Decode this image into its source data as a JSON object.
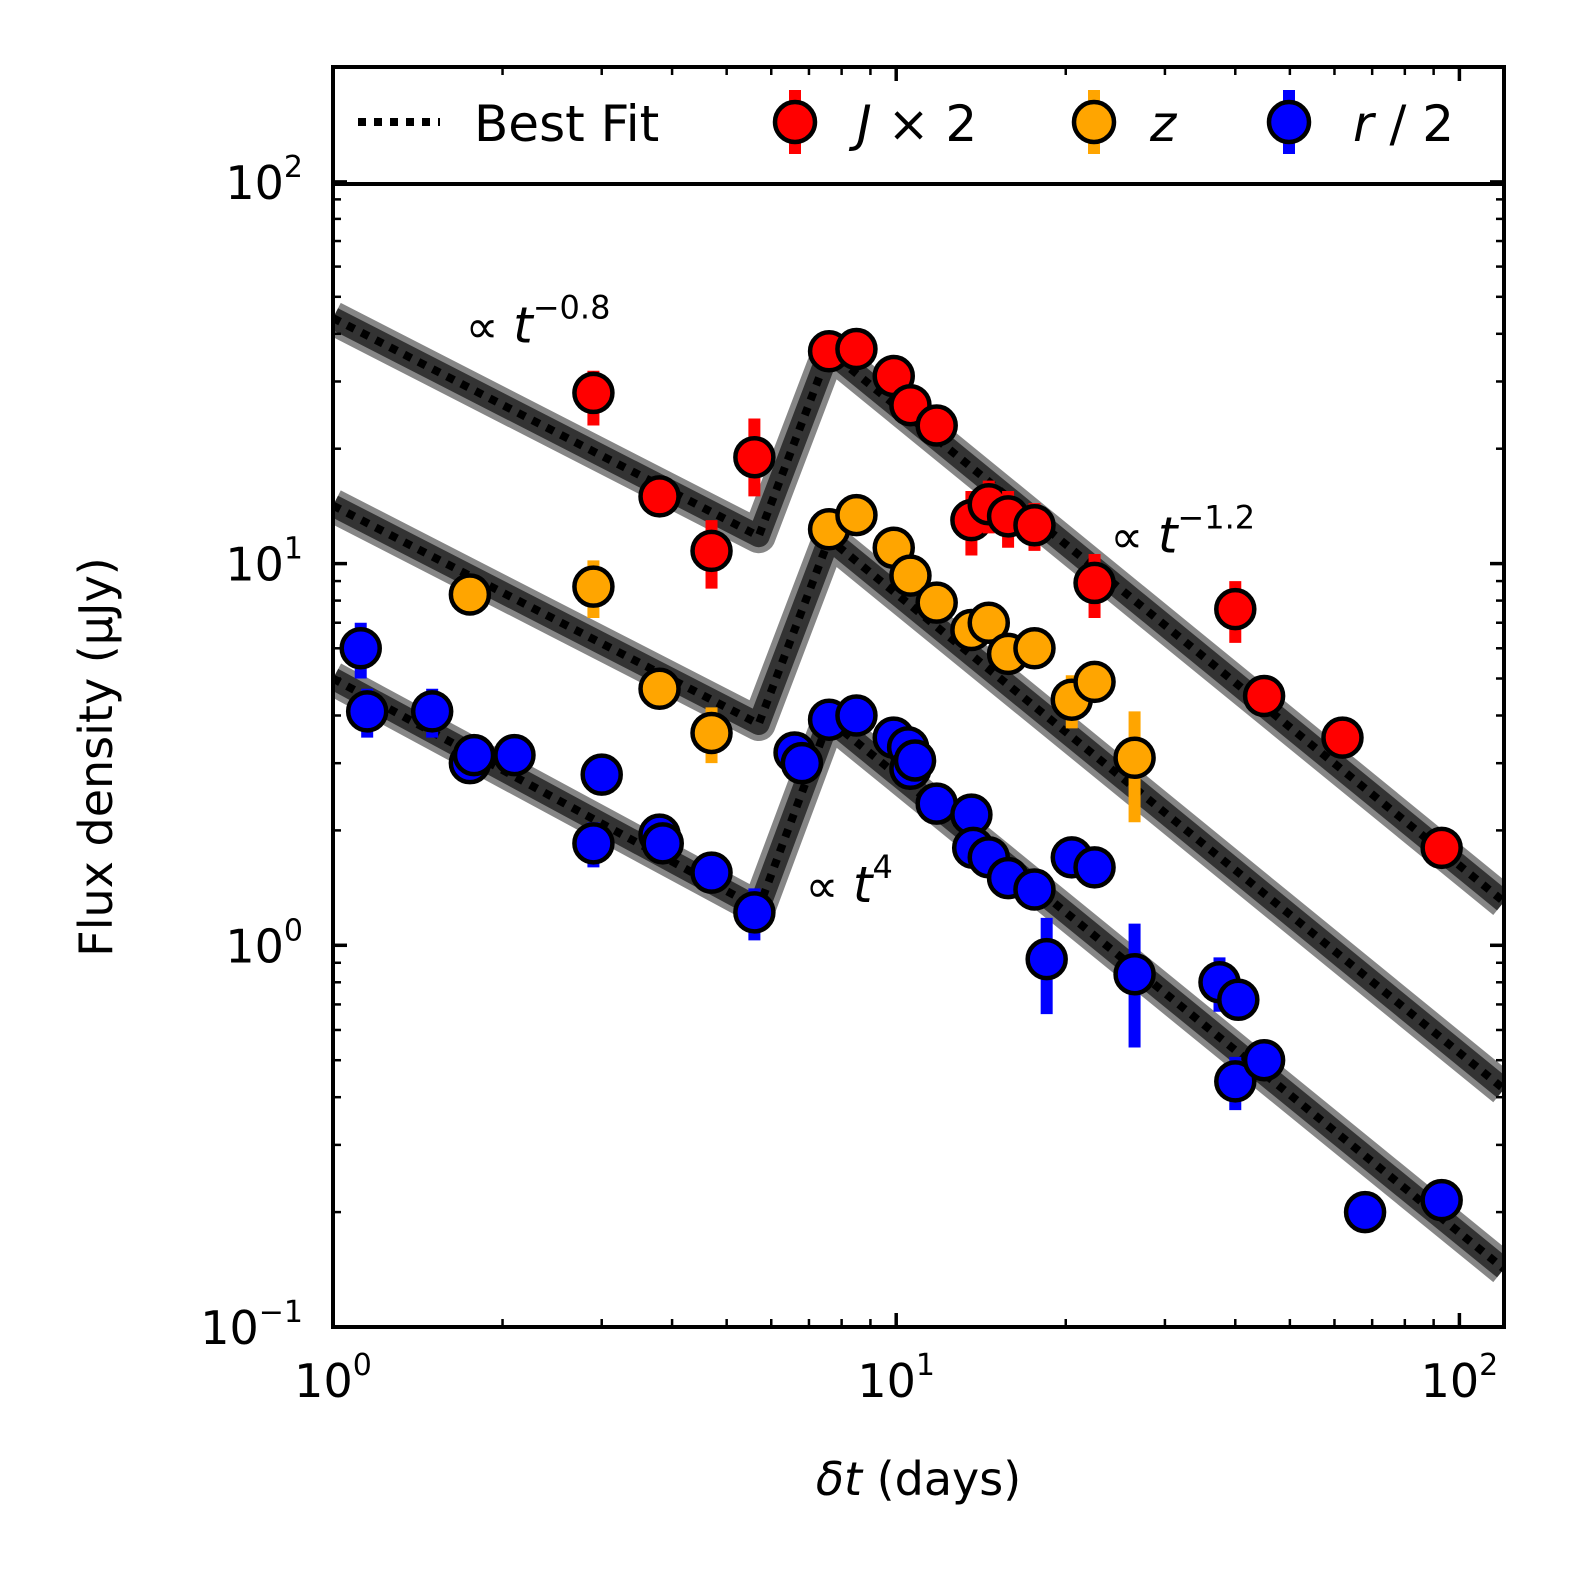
{
  "chart_data": {
    "type": "scatter",
    "x_scale": "log",
    "y_scale": "log",
    "xlim": [
      1,
      120
    ],
    "ylim": [
      0.1,
      200
    ],
    "xlabel_symbol": "δt",
    "xlabel_unit": "(days)",
    "ylabel": "Flux density (μJy)",
    "x_ticks": [
      {
        "value": 1,
        "base": "10",
        "exp": "0"
      },
      {
        "value": 10,
        "base": "10",
        "exp": "1"
      },
      {
        "value": 100,
        "base": "10",
        "exp": "2"
      }
    ],
    "y_ticks": [
      {
        "value": 0.1,
        "base": "10",
        "exp": "−1"
      },
      {
        "value": 1,
        "base": "10",
        "exp": "0"
      },
      {
        "value": 10,
        "base": "10",
        "exp": "1"
      },
      {
        "value": 100,
        "base": "10",
        "exp": "2"
      }
    ],
    "grid": false,
    "legend": {
      "placement": "top",
      "entries": [
        {
          "key": "best_fit",
          "label": "Best Fit",
          "style": "dotted-line"
        },
        {
          "key": "J",
          "label_sym": "J",
          "label_rest": " × 2",
          "color": "#ff0000"
        },
        {
          "key": "z",
          "label_sym": "z",
          "label_rest": "",
          "color": "#ffa500"
        },
        {
          "key": "r",
          "label_sym": "r",
          "label_rest": " / 2",
          "color": "#0000ff"
        }
      ]
    },
    "annotations": [
      {
        "prefix": "∝ ",
        "sym": "t",
        "exp": "−0.8",
        "x": 1.72,
        "y": 38
      },
      {
        "prefix": "∝ ",
        "sym": "t",
        "exp": "−1.2",
        "x": 24,
        "y": 10.7
      },
      {
        "prefix": "∝ ",
        "sym": "t",
        "exp": "4",
        "x": 6.9,
        "y": 1.3
      }
    ],
    "model": {
      "name": "Best Fit",
      "color": "#000000",
      "t_break_rise": 5.7,
      "t_peak": 7.6,
      "early_index": -0.8,
      "rise_index": 4,
      "late_index": -1.2,
      "curves": [
        {
          "series": "J",
          "points": [
            [
              1,
              44
            ],
            [
              5.7,
              11.8
            ],
            [
              7.6,
              36
            ],
            [
              120,
              1.3
            ]
          ]
        },
        {
          "series": "z",
          "points": [
            [
              1,
              14.2
            ],
            [
              5.7,
              3.8
            ],
            [
              7.6,
              11.6
            ],
            [
              120,
              0.42
            ]
          ]
        },
        {
          "series": "r",
          "points": [
            [
              1,
              5.0
            ],
            [
              5.7,
              1.25
            ],
            [
              7.6,
              3.9
            ],
            [
              120,
              0.142
            ]
          ]
        }
      ]
    },
    "series": [
      {
        "name": "J × 2",
        "key": "J",
        "color": "#ff0000",
        "points": [
          {
            "x": 2.9,
            "y": 28,
            "err": [
              23,
              32
            ]
          },
          {
            "x": 3.8,
            "y": 15,
            "err": [
              14,
              16
            ]
          },
          {
            "x": 4.7,
            "y": 10.8,
            "err": [
              8.6,
              13
            ]
          },
          {
            "x": 5.6,
            "y": 19,
            "err": [
              15,
              24
            ]
          },
          {
            "x": 7.6,
            "y": 36,
            "err": [
              34,
              38
            ]
          },
          {
            "x": 8.5,
            "y": 36.5,
            "err": [
              34.5,
              38.5
            ]
          },
          {
            "x": 9.9,
            "y": 31,
            "err": [
              29,
              33
            ]
          },
          {
            "x": 10.6,
            "y": 26,
            "err": [
              24.5,
              27.5
            ]
          },
          {
            "x": 11.8,
            "y": 23,
            "err": [
              21.5,
              24.5
            ]
          },
          {
            "x": 13.6,
            "y": 13,
            "err": [
              10.5,
              15.5
            ]
          },
          {
            "x": 14.6,
            "y": 14.3,
            "err": [
              12,
              16.5
            ]
          },
          {
            "x": 15.8,
            "y": 13.3,
            "err": [
              11,
              15.5
            ]
          },
          {
            "x": 17.6,
            "y": 12.6,
            "err": [
              10.8,
              14.4
            ]
          },
          {
            "x": 22.5,
            "y": 8.9,
            "err": [
              7.2,
              10.6
            ]
          },
          {
            "x": 40,
            "y": 7.6,
            "err": [
              6.2,
              9.0
            ]
          },
          {
            "x": 45,
            "y": 4.5,
            "err": [
              4.1,
              4.9
            ]
          },
          {
            "x": 62,
            "y": 3.5,
            "err": [
              3.2,
              3.8
            ]
          },
          {
            "x": 93,
            "y": 1.8,
            "err": [
              1.6,
              2.0
            ]
          }
        ]
      },
      {
        "name": "z",
        "key": "z",
        "color": "#ffa500",
        "points": [
          {
            "x": 1.75,
            "y": 8.3,
            "err": [
              7.7,
              8.9
            ]
          },
          {
            "x": 2.9,
            "y": 8.7,
            "err": [
              7.2,
              10.2
            ]
          },
          {
            "x": 3.8,
            "y": 4.7,
            "err": [
              4.3,
              5.1
            ]
          },
          {
            "x": 4.7,
            "y": 3.6,
            "err": [
              3.0,
              4.2
            ]
          },
          {
            "x": 7.6,
            "y": 12.3,
            "err": [
              11.4,
              13.2
            ]
          },
          {
            "x": 8.5,
            "y": 13.4,
            "err": [
              12.4,
              14.4
            ]
          },
          {
            "x": 9.9,
            "y": 11.0,
            "err": [
              10.2,
              11.8
            ]
          },
          {
            "x": 10.6,
            "y": 9.3,
            "err": [
              8.6,
              10.0
            ]
          },
          {
            "x": 11.8,
            "y": 7.9,
            "err": [
              7.3,
              8.5
            ]
          },
          {
            "x": 13.6,
            "y": 6.7,
            "err": [
              6.2,
              7.2
            ]
          },
          {
            "x": 14.6,
            "y": 7.0,
            "err": [
              6.5,
              7.5
            ]
          },
          {
            "x": 15.8,
            "y": 5.8,
            "err": [
              5.3,
              6.3
            ]
          },
          {
            "x": 17.6,
            "y": 6.0,
            "err": [
              5.5,
              6.5
            ]
          },
          {
            "x": 20.5,
            "y": 4.4,
            "err": [
              3.7,
              5.1
            ]
          },
          {
            "x": 22.5,
            "y": 4.9,
            "err": [
              4.4,
              5.4
            ]
          },
          {
            "x": 26.5,
            "y": 3.1,
            "err": [
              2.1,
              4.1
            ]
          }
        ]
      },
      {
        "name": "r / 2",
        "key": "r",
        "color": "#0000ff",
        "points": [
          {
            "x": 1.12,
            "y": 6.0,
            "err": [
              5.0,
              7.0
            ]
          },
          {
            "x": 1.15,
            "y": 4.1,
            "err": [
              3.5,
              4.7
            ]
          },
          {
            "x": 1.5,
            "y": 4.1,
            "err": [
              3.5,
              4.7
            ]
          },
          {
            "x": 1.75,
            "y": 3.0,
            "err": [
              2.8,
              3.2
            ]
          },
          {
            "x": 1.78,
            "y": 3.15,
            "err": [
              2.95,
              3.35
            ]
          },
          {
            "x": 2.1,
            "y": 3.15,
            "err": [
              2.95,
              3.35
            ]
          },
          {
            "x": 2.9,
            "y": 1.85,
            "err": [
              1.6,
              2.1
            ]
          },
          {
            "x": 3.0,
            "y": 2.8,
            "err": [
              2.6,
              3.0
            ]
          },
          {
            "x": 3.8,
            "y": 1.95,
            "err": [
              1.8,
              2.1
            ]
          },
          {
            "x": 3.85,
            "y": 1.85,
            "err": [
              1.7,
              2.0
            ]
          },
          {
            "x": 4.7,
            "y": 1.55,
            "err": [
              1.45,
              1.65
            ]
          },
          {
            "x": 5.6,
            "y": 1.22,
            "err": [
              1.03,
              1.41
            ]
          },
          {
            "x": 6.6,
            "y": 3.2,
            "err": [
              3.0,
              3.4
            ]
          },
          {
            "x": 6.8,
            "y": 3.0,
            "err": [
              2.8,
              3.2
            ]
          },
          {
            "x": 7.6,
            "y": 3.9,
            "err": [
              3.7,
              4.1
            ]
          },
          {
            "x": 8.5,
            "y": 4.0,
            "err": [
              3.8,
              4.2
            ]
          },
          {
            "x": 9.9,
            "y": 3.5,
            "err": [
              3.3,
              3.7
            ]
          },
          {
            "x": 10.5,
            "y": 3.3,
            "err": [
              3.1,
              3.5
            ]
          },
          {
            "x": 10.6,
            "y": 2.9,
            "err": [
              2.7,
              3.1
            ]
          },
          {
            "x": 10.8,
            "y": 3.05,
            "err": [
              2.85,
              3.25
            ]
          },
          {
            "x": 11.8,
            "y": 2.35,
            "err": [
              2.2,
              2.5
            ]
          },
          {
            "x": 13.6,
            "y": 2.2,
            "err": [
              2.05,
              2.35
            ]
          },
          {
            "x": 13.7,
            "y": 1.8,
            "err": [
              1.67,
              1.93
            ]
          },
          {
            "x": 14.6,
            "y": 1.7,
            "err": [
              1.58,
              1.82
            ]
          },
          {
            "x": 15.8,
            "y": 1.5,
            "err": [
              1.39,
              1.61
            ]
          },
          {
            "x": 17.6,
            "y": 1.4,
            "err": [
              1.3,
              1.5
            ]
          },
          {
            "x": 18.5,
            "y": 0.92,
            "err": [
              0.66,
              1.18
            ]
          },
          {
            "x": 20.5,
            "y": 1.7,
            "err": [
              1.58,
              1.82
            ]
          },
          {
            "x": 22.5,
            "y": 1.6,
            "err": [
              1.48,
              1.72
            ]
          },
          {
            "x": 26.5,
            "y": 0.84,
            "err": [
              0.54,
              1.14
            ]
          },
          {
            "x": 37.5,
            "y": 0.8,
            "err": [
              0.67,
              0.93
            ]
          },
          {
            "x": 40,
            "y": 0.44,
            "err": [
              0.37,
              0.51
            ]
          },
          {
            "x": 40.5,
            "y": 0.72,
            "err": [
              0.66,
              0.78
            ]
          },
          {
            "x": 45,
            "y": 0.5,
            "err": [
              0.46,
              0.54
            ]
          },
          {
            "x": 68,
            "y": 0.2,
            "err": [
              0.18,
              0.22
            ]
          },
          {
            "x": 93,
            "y": 0.215,
            "err": [
              0.195,
              0.235
            ]
          }
        ]
      }
    ]
  }
}
